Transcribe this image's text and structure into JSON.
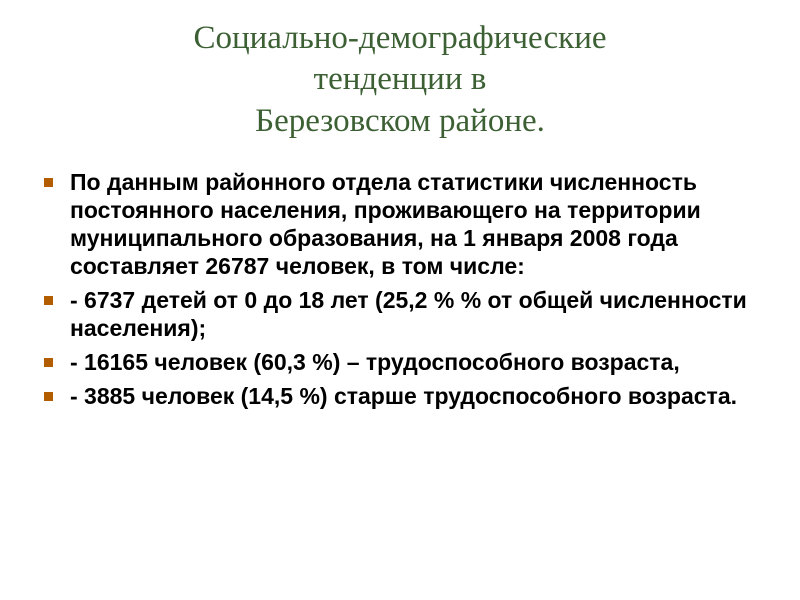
{
  "slide": {
    "title_line1": "Социально-демографические",
    "title_line2": "тенденции в",
    "title_line3": "Березовском районе.",
    "title_color": "#3c6034",
    "title_fontsize": 33,
    "bullet_marker_color": "#b25e00",
    "bullets": [
      "По данным  районного отдела статистики численность постоянного населения, проживающего на территории муниципального образования, на 1 января 2008 года составляет 26787 человек, в том числе:",
      "- 6737 детей от 0 до 18 лет (25,2 % % от общей численности населения);",
      "- 16165 человек (60,3  %) – трудоспособного возраста,",
      "- 3885 человек (14,5 %) старше трудоспособного возраста."
    ],
    "body_fontsize": 23,
    "body_weight": 700,
    "background_color": "#ffffff"
  }
}
